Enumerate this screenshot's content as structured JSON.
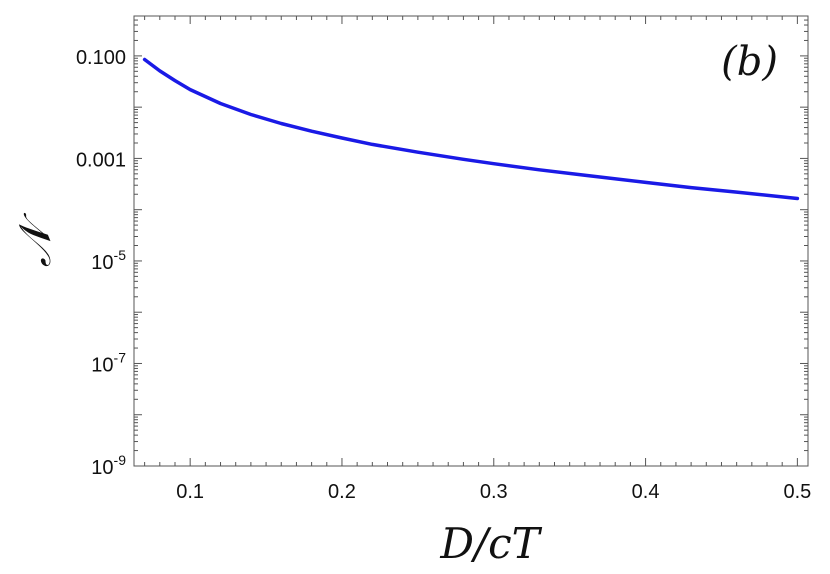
{
  "chart_data": {
    "type": "line",
    "title": "",
    "panel_label": "(b)",
    "xlabel": "D/cT",
    "ylabel": "𝒩",
    "xlim": [
      0.063,
      0.507
    ],
    "ylim": [
      1e-09,
      0.6
    ],
    "y_scale": "log",
    "grid": false,
    "legend": "none",
    "x_ticks": [
      {
        "value": 0.1,
        "label": "0.1"
      },
      {
        "value": 0.2,
        "label": "0.2"
      },
      {
        "value": 0.3,
        "label": "0.3"
      },
      {
        "value": 0.4,
        "label": "0.4"
      },
      {
        "value": 0.5,
        "label": "0.5"
      }
    ],
    "y_ticks": [
      {
        "value": 0.1,
        "label": "0.100"
      },
      {
        "value": 0.001,
        "label": "0.001"
      },
      {
        "value": 1e-05,
        "base": "10",
        "exp": "-5"
      },
      {
        "value": 1e-07,
        "base": "10",
        "exp": "-7"
      },
      {
        "value": 1e-09,
        "base": "10",
        "exp": "-9"
      }
    ],
    "series": [
      {
        "color": "#1a1ae6",
        "x": [
          0.07,
          0.08,
          0.09,
          0.1,
          0.12,
          0.14,
          0.16,
          0.18,
          0.2,
          0.22,
          0.25,
          0.28,
          0.3,
          0.33,
          0.36,
          0.4,
          0.43,
          0.46,
          0.5
        ],
        "y": [
          0.085,
          0.051,
          0.033,
          0.022,
          0.0118,
          0.0072,
          0.0048,
          0.0034,
          0.0025,
          0.00188,
          0.00132,
          0.00096,
          0.00079,
          0.0006,
          0.00047,
          0.00034,
          0.00027,
          0.00022,
          0.000165
        ]
      }
    ]
  }
}
